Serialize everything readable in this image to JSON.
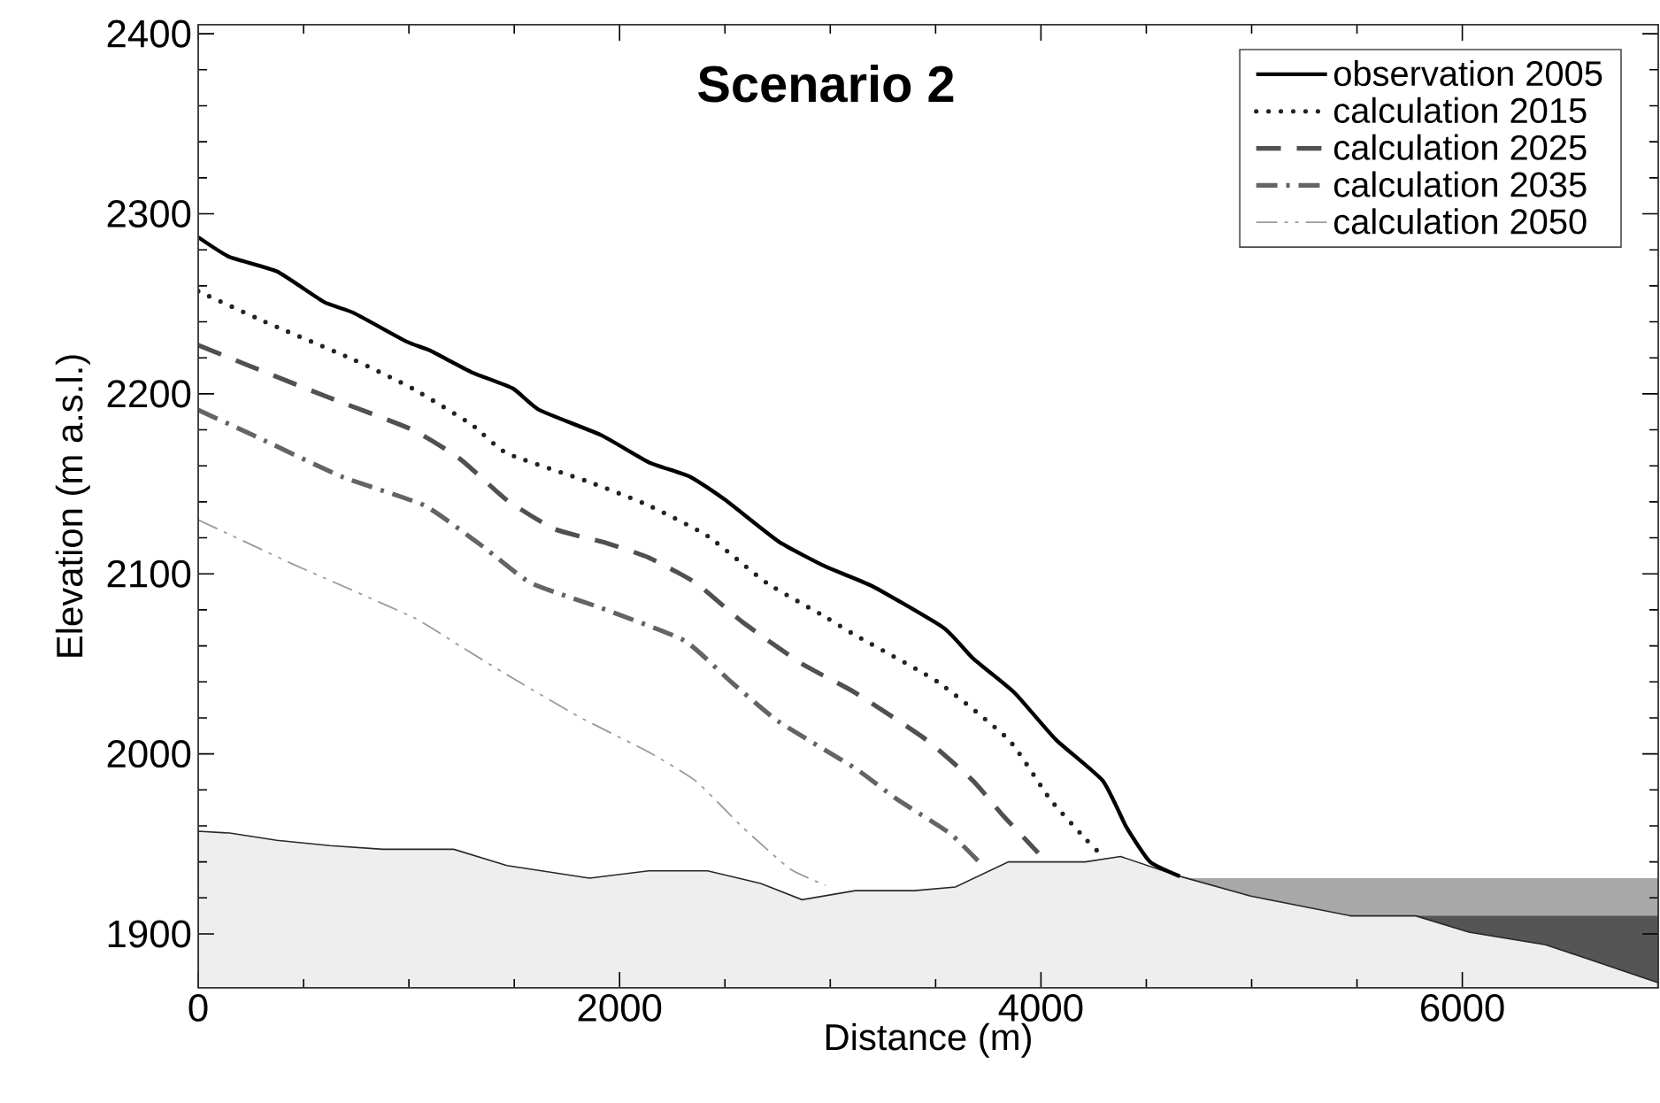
{
  "chart_data": {
    "type": "line",
    "title": "Scenario 2",
    "xlabel": "Distance (m)",
    "ylabel": "Elevation (m a.s.l.)",
    "xlim": [
      0,
      6930
    ],
    "ylim": [
      1870,
      2405
    ],
    "xticks": [
      0,
      2000,
      4000,
      6000
    ],
    "yticks": [
      1900,
      2000,
      2100,
      2200,
      2300,
      2400
    ],
    "legend": "top right",
    "series": [
      {
        "type": "area",
        "color": "#a8a8a8",
        "x": [
          4659,
          6930
        ],
        "values": [
          1931,
          1931
        ]
      },
      {
        "type": "area",
        "color": "#555555",
        "x": [
          5779,
          6930
        ],
        "values": [
          1910,
          1910
        ]
      },
      {
        "type": "area",
        "color": "#eeeeee",
        "x": [
          0,
          149,
          373,
          625,
          877,
          1213,
          1465,
          1857,
          2138,
          2418,
          2670,
          2866,
          3118,
          3398,
          3594,
          3846,
          4210,
          4378,
          4659,
          4995,
          5471,
          5779,
          6031,
          6395,
          6928
        ],
        "values": [
          1957,
          1956,
          1952,
          1949,
          1947,
          1947,
          1938,
          1931,
          1935,
          1935,
          1928,
          1919,
          1924,
          1924,
          1926,
          1940,
          1940,
          1943,
          1932,
          1921,
          1910,
          1910,
          1901,
          1894,
          1873
        ]
      },
      {
        "name": "observation 2005",
        "color": "#000000",
        "line_style": "solid",
        "x": [
          0,
          149,
          373,
          597,
          737,
          989,
          1101,
          1297,
          1493,
          1619,
          1913,
          2138,
          2334,
          2502,
          2754,
          2978,
          3202,
          3538,
          3678,
          3874,
          4070,
          4294,
          4407,
          4518,
          4659
        ],
        "values": [
          2287,
          2276,
          2268,
          2251,
          2245,
          2229,
          2224,
          2212,
          2203,
          2191,
          2177,
          2162,
          2154,
          2141,
          2118,
          2104,
          2093,
          2070,
          2053,
          2034,
          2008,
          1985,
          1959,
          1940,
          1932
        ]
      },
      {
        "name": "calculation 2015",
        "color": "#222222",
        "line_style": "dotted",
        "x": [
          0,
          317,
          737,
          1017,
          1297,
          1465,
          1857,
          2138,
          2418,
          2698,
          2978,
          3118,
          3510,
          3846,
          4042,
          4210,
          4294
        ],
        "values": [
          2257,
          2240,
          2219,
          2203,
          2183,
          2167,
          2151,
          2138,
          2121,
          2095,
          2076,
          2066,
          2040,
          2008,
          1975,
          1953,
          1943
        ]
      },
      {
        "name": "calculation 2025",
        "color": "#505050",
        "line_style": "dashed",
        "x": [
          0,
          233,
          597,
          1017,
          1241,
          1465,
          1689,
          1941,
          2138,
          2361,
          2586,
          2866,
          3118,
          3454,
          3678,
          3818,
          3987
        ],
        "values": [
          2227,
          2216,
          2199,
          2180,
          2164,
          2141,
          2125,
          2117,
          2109,
          2095,
          2073,
          2050,
          2034,
          2008,
          1985,
          1966,
          1945
        ]
      },
      {
        "name": "calculation 2035",
        "color": "#646464",
        "line_style": "dashdot",
        "x": [
          0,
          261,
          681,
          1073,
          1353,
          1577,
          1913,
          2306,
          2529,
          2754,
          3118,
          3314,
          3566,
          3706
        ],
        "values": [
          2191,
          2177,
          2154,
          2138,
          2115,
          2095,
          2081,
          2063,
          2040,
          2018,
          1992,
          1975,
          1956,
          1940
        ]
      },
      {
        "name": "calculation 2050",
        "color": "#9a9a9a",
        "line_style": "dashdotdot",
        "x": [
          0,
          457,
          1017,
          1241,
          1465,
          1801,
          2138,
          2361,
          2586,
          2810,
          2978
        ],
        "values": [
          2130,
          2105,
          2076,
          2060,
          2044,
          2021,
          2001,
          1985,
          1959,
          1936,
          1927
        ]
      }
    ]
  }
}
